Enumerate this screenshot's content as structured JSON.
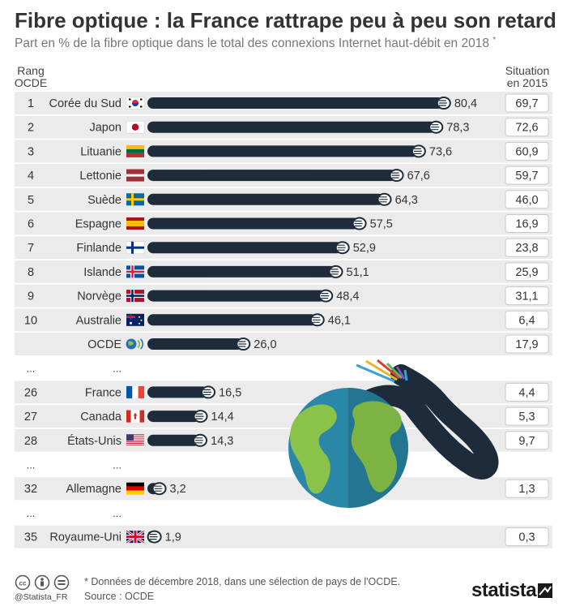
{
  "header": {
    "title": "Fibre optique : la France rattrape peu à peu son retard",
    "subtitle": "Part en % de la fibre optique dans le total des connexions Internet haut-débit en 2018",
    "subtitle_mark": "*",
    "col_rank_line1": "Rang",
    "col_rank_line2": "OCDE",
    "col_situation_line1": "Situation",
    "col_situation_line2": "en 2015"
  },
  "chart_data": {
    "type": "bar",
    "orientation": "horizontal",
    "title": "Fibre optique : la France rattrape peu à peu son retard",
    "subtitle": "Part en % de la fibre optique dans le total des connexions Internet haut-débit en 2018",
    "xlim": [
      0,
      100
    ],
    "bar_color": "#1d2b3a",
    "categories": [
      "Corée du Sud",
      "Japon",
      "Lituanie",
      "Lettonie",
      "Suède",
      "Espagne",
      "Finlande",
      "Islande",
      "Norvège",
      "Australie",
      "OCDE",
      "France",
      "Canada",
      "États-Unis",
      "Allemagne",
      "Royaume-Uni"
    ],
    "rows": [
      {
        "rank": "1",
        "country": "Corée du Sud",
        "flag": "kr",
        "value": 80.4,
        "value_label": "80,4",
        "situation_2015": "69,7"
      },
      {
        "rank": "2",
        "country": "Japon",
        "flag": "jp",
        "value": 78.3,
        "value_label": "78,3",
        "situation_2015": "72,6"
      },
      {
        "rank": "3",
        "country": "Lituanie",
        "flag": "lt",
        "value": 73.6,
        "value_label": "73,6",
        "situation_2015": "60,9"
      },
      {
        "rank": "4",
        "country": "Lettonie",
        "flag": "lv",
        "value": 67.6,
        "value_label": "67,6",
        "situation_2015": "59,7"
      },
      {
        "rank": "5",
        "country": "Suède",
        "flag": "se",
        "value": 64.3,
        "value_label": "64,3",
        "situation_2015": "46,0"
      },
      {
        "rank": "6",
        "country": "Espagne",
        "flag": "es",
        "value": 57.5,
        "value_label": "57,5",
        "situation_2015": "16,9"
      },
      {
        "rank": "7",
        "country": "Finlande",
        "flag": "fi",
        "value": 52.9,
        "value_label": "52,9",
        "situation_2015": "23,8"
      },
      {
        "rank": "8",
        "country": "Islande",
        "flag": "is",
        "value": 51.1,
        "value_label": "51,1",
        "situation_2015": "25,9"
      },
      {
        "rank": "9",
        "country": "Norvège",
        "flag": "no",
        "value": 48.4,
        "value_label": "48,4",
        "situation_2015": "31,1"
      },
      {
        "rank": "10",
        "country": "Australie",
        "flag": "au",
        "value": 46.1,
        "value_label": "46,1",
        "situation_2015": "6,4"
      },
      {
        "rank": "",
        "country": "OCDE",
        "flag": "oecd",
        "value": 26.0,
        "value_label": "26,0",
        "situation_2015": "17,9"
      },
      {
        "gap": true,
        "rank": "...",
        "country": "..."
      },
      {
        "rank": "26",
        "country": "France",
        "flag": "fr",
        "value": 16.5,
        "value_label": "16,5",
        "situation_2015": "4,4"
      },
      {
        "rank": "27",
        "country": "Canada",
        "flag": "ca",
        "value": 14.4,
        "value_label": "14,4",
        "situation_2015": "5,3"
      },
      {
        "rank": "28",
        "country": "États-Unis",
        "flag": "us",
        "value": 14.3,
        "value_label": "14,3",
        "situation_2015": "9,7"
      },
      {
        "gap": true,
        "rank": "...",
        "country": "..."
      },
      {
        "rank": "32",
        "country": "Allemagne",
        "flag": "de",
        "value": 3.2,
        "value_label": "3,2",
        "situation_2015": "1,3"
      },
      {
        "gap": true,
        "rank": "...",
        "country": "..."
      },
      {
        "rank": "35",
        "country": "Royaume-Uni",
        "flag": "gb",
        "value": 1.9,
        "value_label": "1,9",
        "situation_2015": "0,3"
      }
    ]
  },
  "footer": {
    "note": "* Données de décembre 2018, dans une sélection de pays de l'OCDE.",
    "source": "Source : OCDE",
    "handle": "@Statista_FR",
    "brand": "statista"
  }
}
